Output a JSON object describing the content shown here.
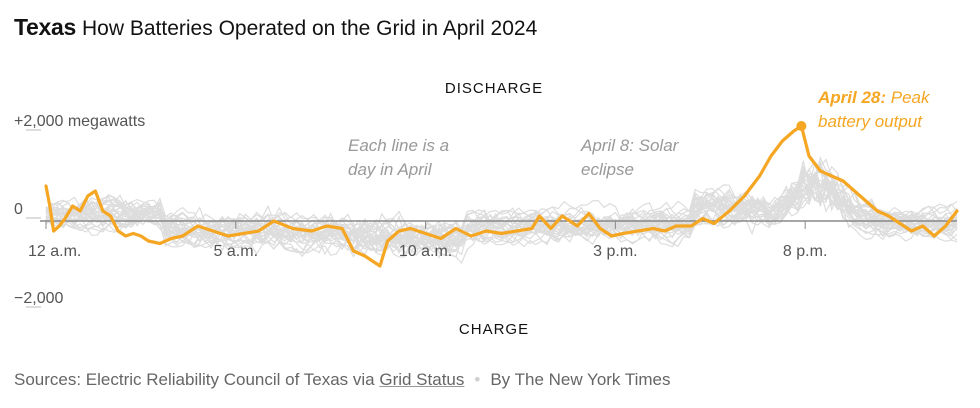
{
  "header": {
    "state": "Texas",
    "subtitle": "How Batteries Operated on the Grid in April 2024"
  },
  "chart_data": {
    "type": "line",
    "title": "How Batteries Operated on the Grid in April 2024",
    "top_label": "DISCHARGE",
    "bottom_label": "CHARGE",
    "y_tick_labels": [
      "+2,000 megawatts",
      "0",
      "−2,000"
    ],
    "y_ticks": [
      2000,
      0,
      -2000
    ],
    "ylim": [
      -2000,
      2000
    ],
    "x_tick_labels": [
      "12 a.m.",
      "5 a.m.",
      "10 a.m.",
      "3 p.m.",
      "8 p.m."
    ],
    "x_ticks": [
      0,
      5,
      10,
      15,
      20
    ],
    "xlim": [
      0,
      24
    ],
    "annotations": {
      "each_line": "Each line is a day in April",
      "eclipse": "April 8: Solar eclipse",
      "peak_date": "April 28:",
      "peak_text": "Peak battery output"
    },
    "highlight_color": "#f5a623",
    "background_color": "#dddddd",
    "highlight_series": {
      "name": "April 28",
      "x": [
        0,
        0.1,
        0.2,
        0.35,
        0.5,
        0.7,
        0.9,
        1.1,
        1.3,
        1.5,
        1.7,
        1.9,
        2.1,
        2.3,
        2.5,
        2.7,
        3.0,
        3.3,
        3.6,
        4.0,
        4.4,
        4.8,
        5.2,
        5.6,
        6.0,
        6.5,
        7.0,
        7.4,
        7.8,
        8.1,
        8.4,
        8.6,
        8.8,
        9.0,
        9.3,
        9.6,
        10.0,
        10.4,
        10.8,
        11.2,
        11.6,
        12.0,
        12.4,
        12.8,
        13.0,
        13.3,
        13.6,
        14.0,
        14.3,
        14.6,
        14.9,
        15.2,
        15.6,
        16.0,
        16.3,
        16.6,
        17.0,
        17.3,
        17.6,
        18.0,
        18.4,
        18.8,
        19.1,
        19.4,
        19.7,
        19.9,
        20.0,
        20.1,
        20.4,
        20.7,
        21.0,
        21.3,
        21.6,
        21.9,
        22.2,
        22.5,
        22.8,
        23.1,
        23.4,
        23.7,
        24.0
      ],
      "y": [
        700,
        300,
        -200,
        -100,
        50,
        300,
        200,
        500,
        600,
        200,
        100,
        -200,
        -300,
        -250,
        -300,
        -400,
        -450,
        -350,
        -300,
        -100,
        -200,
        -300,
        -250,
        -200,
        0,
        -150,
        -200,
        -100,
        -150,
        -600,
        -700,
        -800,
        -900,
        -400,
        -200,
        -150,
        -250,
        -350,
        -150,
        -300,
        -200,
        -250,
        -200,
        -150,
        100,
        -150,
        100,
        -100,
        150,
        -150,
        -300,
        -250,
        -200,
        -150,
        -200,
        -100,
        -100,
        50,
        -50,
        200,
        500,
        900,
        1300,
        1600,
        1800,
        1900,
        1600,
        1300,
        1000,
        900,
        800,
        600,
        400,
        200,
        100,
        -50,
        -200,
        -100,
        -300,
        -100,
        200
      ]
    }
  },
  "footer": {
    "sources_prefix": "Sources: Electric Reliability Council of Texas via ",
    "sources_link": "Grid Status",
    "separator": "•",
    "byline": "By The New York Times"
  }
}
